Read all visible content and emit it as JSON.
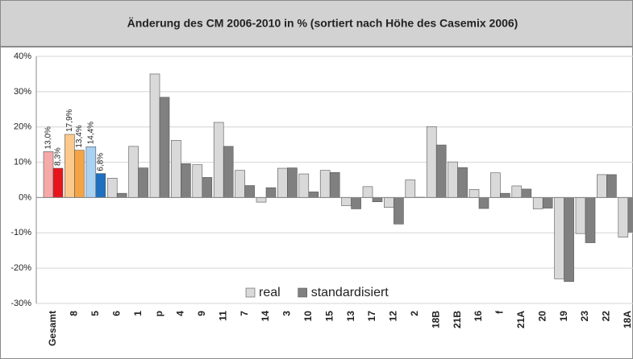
{
  "chart_data": {
    "type": "bar",
    "title": "Änderung des CM 2006-2010 in % (sortiert nach Höhe des Casemix 2006)",
    "categories": [
      "Gesamt",
      "8",
      "5",
      "6",
      "1",
      "p",
      "4",
      "9",
      "11",
      "7",
      "14",
      "3",
      "10",
      "15",
      "13",
      "17",
      "12",
      "2",
      "18B",
      "21B",
      "16",
      "f",
      "21A",
      "20",
      "19",
      "23",
      "22",
      "18A"
    ],
    "series": [
      {
        "name": "real",
        "color": "#d9d9d9",
        "colors": [
          "#f6a9a9",
          "#fbc98c",
          "#a9d1f2"
        ],
        "values": [
          13.0,
          17.9,
          14.4,
          5.5,
          14.5,
          35.0,
          16.2,
          9.3,
          21.3,
          7.7,
          -1.3,
          8.3,
          6.7,
          7.7,
          -2.3,
          3.1,
          -2.8,
          5.0,
          20.1,
          10.1,
          2.3,
          7.0,
          3.3,
          -3.2,
          -23.0,
          -10.2,
          6.5,
          -11.2
        ],
        "value_labels": [
          "13,0%",
          "17,9%",
          "14,4%",
          null,
          null,
          null,
          null,
          null,
          null,
          null,
          null,
          null,
          null,
          null,
          null,
          null,
          null,
          null,
          null,
          null,
          null,
          null,
          null,
          null,
          null,
          null,
          null,
          null
        ]
      },
      {
        "name": "standardisiert",
        "color": "#808080",
        "colors": [
          "#e8141c",
          "#f3a447",
          "#1f70c1"
        ],
        "values": [
          8.3,
          13.4,
          6.8,
          1.2,
          8.4,
          28.4,
          9.6,
          5.7,
          14.5,
          3.4,
          2.8,
          8.4,
          1.6,
          7.1,
          -3.2,
          -1.2,
          -7.5,
          0.1,
          14.9,
          8.5,
          -3.1,
          1.2,
          2.4,
          -3.0,
          -23.8,
          -12.8,
          6.5,
          -9.8
        ],
        "value_labels": [
          "8,3%",
          "13,4%",
          "6,8%",
          null,
          null,
          null,
          null,
          null,
          null,
          null,
          null,
          null,
          null,
          null,
          null,
          null,
          null,
          null,
          null,
          null,
          null,
          null,
          null,
          null,
          null,
          null,
          null,
          null
        ]
      }
    ],
    "ylim": [
      -30,
      40
    ],
    "yticks": [
      {
        "value": -30,
        "label": "-30%"
      },
      {
        "value": -20,
        "label": "-20%"
      },
      {
        "value": -10,
        "label": "-10%"
      },
      {
        "value": 0,
        "label": "0%"
      },
      {
        "value": 10,
        "label": "10%"
      },
      {
        "value": 20,
        "label": "20%"
      },
      {
        "value": 30,
        "label": "30%"
      },
      {
        "value": 40,
        "label": "40%"
      }
    ],
    "grid": true,
    "legend": "bottom"
  }
}
